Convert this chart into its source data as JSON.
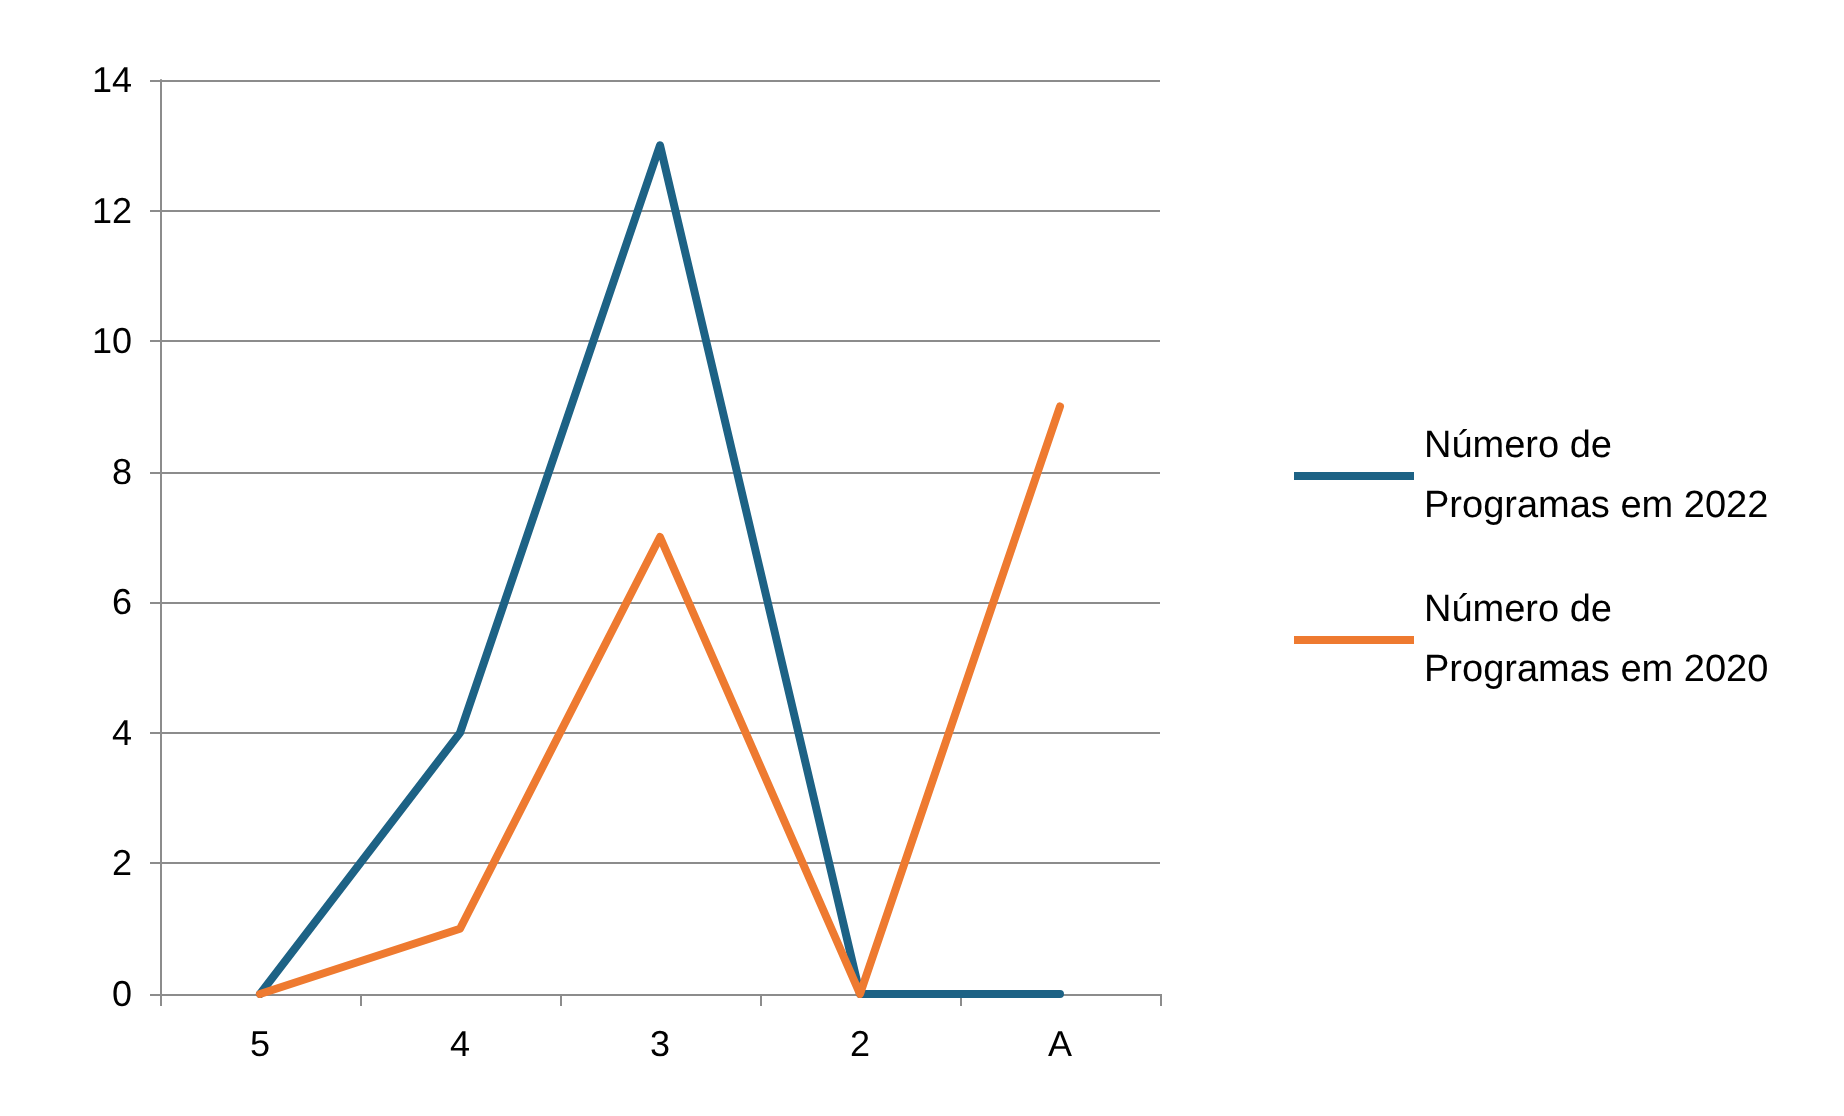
{
  "chart_data": {
    "type": "line",
    "categories": [
      "5",
      "4",
      "3",
      "2",
      "A"
    ],
    "series": [
      {
        "name": "Número de Programas em 2022",
        "color": "#1d6285",
        "values": [
          0,
          4,
          13,
          0,
          0
        ]
      },
      {
        "name": "Número de Programas em 2020",
        "color": "#ee7a30",
        "values": [
          0,
          1,
          7,
          0,
          9
        ]
      }
    ],
    "ylim": [
      0,
      14
    ],
    "yticks": [
      0,
      2,
      4,
      6,
      8,
      10,
      12,
      14
    ],
    "grid": "y",
    "legend": "right",
    "marker": "none"
  }
}
